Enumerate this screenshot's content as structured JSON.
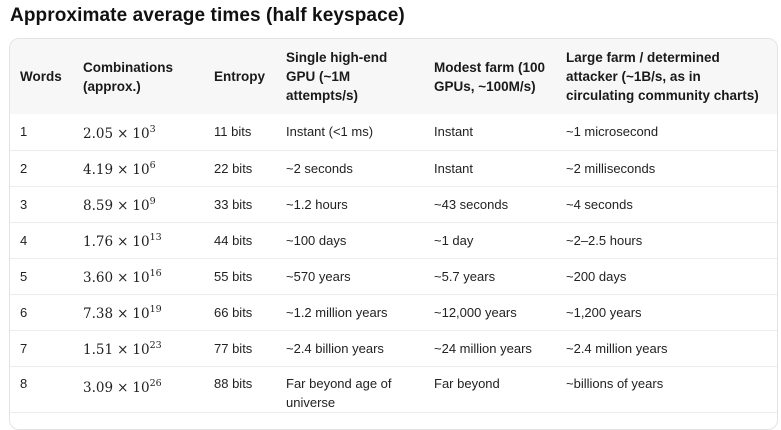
{
  "title": "Approximate average times (half keyspace)",
  "table": {
    "headers": [
      "Words",
      "Combinations (approx.)",
      "Entropy",
      "Single high-end GPU (~1M attempts/s)",
      "Modest farm (100 GPUs, ~100M/s)",
      "Large farm / determined attacker (~1B/s, as in circulating community charts)"
    ],
    "rows": [
      {
        "words": "1",
        "mantissa": "2.05",
        "exp": "3",
        "entropy": "11 bits",
        "gpu": "Instant (<1 ms)",
        "farm": "Instant",
        "large": "~1 microsecond"
      },
      {
        "words": "2",
        "mantissa": "4.19",
        "exp": "6",
        "entropy": "22 bits",
        "gpu": "~2 seconds",
        "farm": "Instant",
        "large": "~2 milliseconds"
      },
      {
        "words": "3",
        "mantissa": "8.59",
        "exp": "9",
        "entropy": "33 bits",
        "gpu": "~1.2 hours",
        "farm": "~43 seconds",
        "large": "~4 seconds"
      },
      {
        "words": "4",
        "mantissa": "1.76",
        "exp": "13",
        "entropy": "44 bits",
        "gpu": "~100 days",
        "farm": "~1 day",
        "large": "~2–2.5 hours"
      },
      {
        "words": "5",
        "mantissa": "3.60",
        "exp": "16",
        "entropy": "55 bits",
        "gpu": "~570 years",
        "farm": "~5.7 years",
        "large": "~200 days"
      },
      {
        "words": "6",
        "mantissa": "7.38",
        "exp": "19",
        "entropy": "66 bits",
        "gpu": "~1.2 million years",
        "farm": "~12,000 years",
        "large": "~1,200 years"
      },
      {
        "words": "7",
        "mantissa": "1.51",
        "exp": "23",
        "entropy": "77 bits",
        "gpu": "~2.4 billion years",
        "farm": "~24 million years",
        "large": "~2.4 million years"
      },
      {
        "words": "8",
        "mantissa": "3.09",
        "exp": "26",
        "entropy": "88 bits",
        "gpu": "Far beyond age of universe",
        "farm": "Far beyond",
        "large": "~billions of years"
      }
    ],
    "times_symbol": "×",
    "base": "10"
  }
}
